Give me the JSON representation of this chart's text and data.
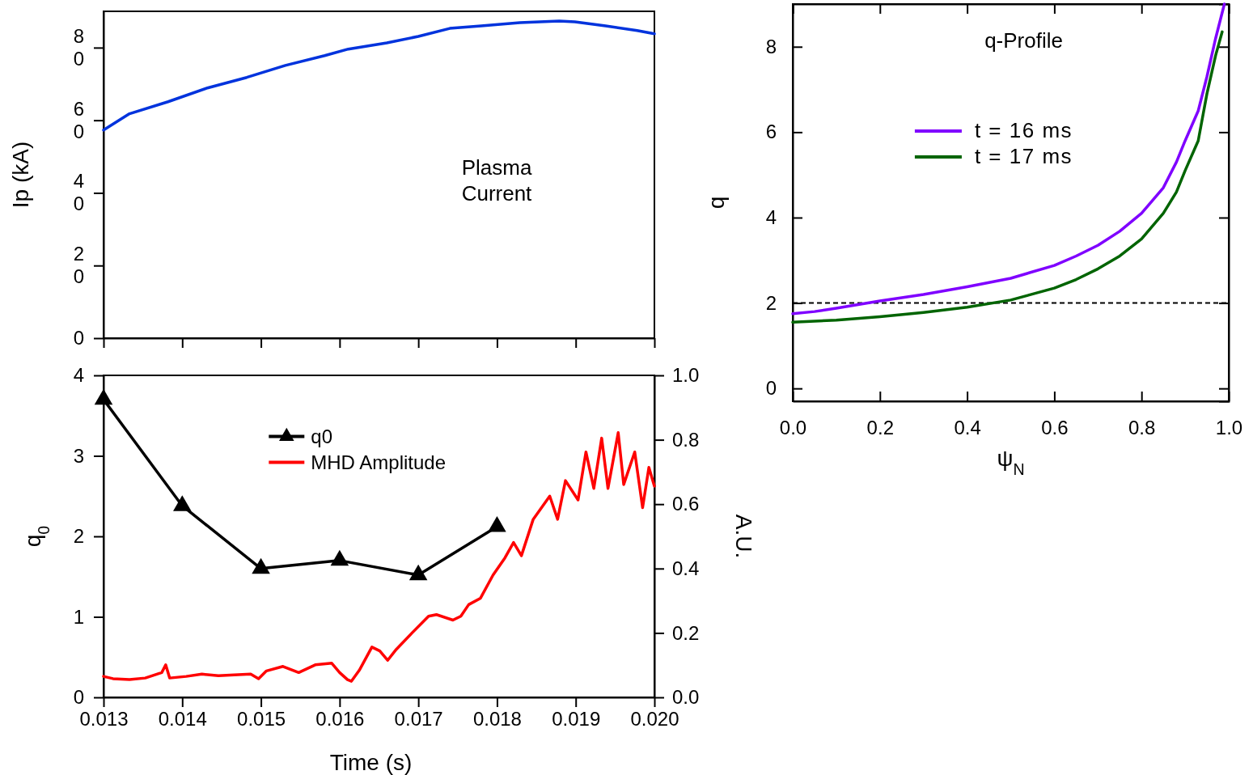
{
  "chart_data": [
    {
      "type": "line",
      "ylabel": "Ip (kA)",
      "annotations": [
        "Plasma\nCurrent"
      ],
      "xlim": [
        0.013,
        0.02
      ],
      "xticks": [
        0.013,
        0.014,
        0.015,
        0.016,
        0.017,
        0.018,
        0.019,
        0.02
      ],
      "ylim": [
        0,
        90
      ],
      "yticks": [
        0,
        20,
        40,
        60,
        80
      ],
      "tick_labels": "y",
      "legend": false,
      "series": [
        {
          "color": "#0033dd",
          "x": [
            0.013,
            0.01333,
            0.01382,
            0.01432,
            0.01482,
            0.01531,
            0.01581,
            0.01611,
            0.0166,
            0.017,
            0.0174,
            0.0178,
            0.01829,
            0.01879,
            0.01899,
            0.01938,
            0.01978,
            0.02
          ],
          "values": [
            57.3,
            61.8,
            65.1,
            68.9,
            71.8,
            75.1,
            77.8,
            79.6,
            81.3,
            83.1,
            85.3,
            86,
            86.9,
            87.3,
            87.1,
            86,
            84.7,
            83.8
          ]
        }
      ]
    },
    {
      "type": "line",
      "xlabel": "Time (s)",
      "ylabel": "q$_{0}$",
      "y2label": "A.U.",
      "xlim": [
        0.013,
        0.02
      ],
      "xticks": [
        0.013,
        0.014,
        0.015,
        0.016,
        0.017,
        0.018,
        0.019,
        {
          "value": 0.02,
          "label": "0.020"
        }
      ],
      "ylim": [
        0,
        4
      ],
      "yticks": [
        0,
        1,
        2,
        3,
        4
      ],
      "y2lim": [
        0,
        1
      ],
      "y2ticks": [
        {
          "value": 0,
          "label": "0.0"
        },
        {
          "value": 0.2,
          "label": "0.2"
        },
        {
          "value": 0.4,
          "label": "0.4"
        },
        {
          "value": 0.6,
          "label": "0.6"
        },
        {
          "value": 0.8,
          "label": "0.8"
        },
        {
          "value": 1,
          "label": "1.0"
        }
      ],
      "legend": "top",
      "series": [
        {
          "name": "q0",
          "color": "#000000",
          "marker": "triangle",
          "x": [
            0.013,
            0.014,
            0.015,
            0.016,
            0.017,
            0.018
          ],
          "values": [
            3.7,
            2.38,
            1.6,
            1.7,
            1.52,
            2.12
          ]
        },
        {
          "name": "MHD Amplitude",
          "color": "#ff0000",
          "axis": "y2",
          "x": [
            0.013,
            0.01312,
            0.01333,
            0.01353,
            0.01374,
            0.01379,
            0.01384,
            0.01405,
            0.01425,
            0.01446,
            0.01466,
            0.01487,
            0.01497,
            0.01507,
            0.01528,
            0.01548,
            0.01569,
            0.0159,
            0.016,
            0.0161,
            0.01615,
            0.01625,
            0.01641,
            0.01651,
            0.01661,
            0.01672,
            0.01692,
            0.01713,
            0.01723,
            0.01744,
            0.01754,
            0.01764,
            0.01779,
            0.01795,
            0.0181,
            0.01821,
            0.01831,
            0.01846,
            0.01867,
            0.01877,
            0.01887,
            0.01903,
            0.01913,
            0.01923,
            0.01933,
            0.01941,
            0.01954,
            0.01961,
            0.01975,
            0.01985,
            0.01993,
            0.02
          ],
          "values": [
            0.065,
            0.058,
            0.055,
            0.06,
            0.077,
            0.101,
            0.06,
            0.065,
            0.072,
            0.067,
            0.07,
            0.072,
            0.058,
            0.082,
            0.096,
            0.077,
            0.101,
            0.106,
            0.077,
            0.055,
            0.05,
            0.084,
            0.156,
            0.144,
            0.115,
            0.149,
            0.2,
            0.252,
            0.257,
            0.24,
            0.252,
            0.288,
            0.308,
            0.38,
            0.433,
            0.481,
            0.44,
            0.553,
            0.625,
            0.553,
            0.673,
            0.613,
            0.762,
            0.649,
            0.805,
            0.649,
            0.822,
            0.661,
            0.762,
            0.589,
            0.714,
            0.656
          ]
        }
      ]
    },
    {
      "type": "line",
      "xlabel": "ψ$_{N}$",
      "ylabel": "q",
      "annotations": [
        "q-Profile"
      ],
      "xlim": [
        0,
        1
      ],
      "xticks": [
        {
          "value": 0,
          "label": "0.0"
        },
        {
          "value": 0.2,
          "label": "0.2"
        },
        {
          "value": 0.4,
          "label": "0.4"
        },
        {
          "value": 0.6,
          "label": "0.6"
        },
        {
          "value": 0.8,
          "label": "0.8"
        },
        {
          "value": 1,
          "label": "1.0"
        }
      ],
      "ylim": [
        -0.3,
        9
      ],
      "yticks": [
        0,
        2,
        4,
        6,
        8
      ],
      "legend": "top",
      "ref_lines": [
        {
          "axis": "y",
          "value": 2,
          "color": "#000000",
          "line_style": "dashed"
        }
      ],
      "series": [
        {
          "name": "t = 16 ms",
          "color": "#7f00ff",
          "x": [
            0,
            0.05,
            0.1,
            0.2,
            0.3,
            0.4,
            0.5,
            0.6,
            0.65,
            0.7,
            0.75,
            0.8,
            0.85,
            0.88,
            0.9,
            0.93,
            0.95,
            0.97,
            0.99
          ],
          "values": [
            1.75,
            1.8,
            1.88,
            2.05,
            2.2,
            2.38,
            2.58,
            2.88,
            3.1,
            3.35,
            3.68,
            4.1,
            4.7,
            5.3,
            5.8,
            6.5,
            7.3,
            8.2,
            9
          ]
        },
        {
          "name": "t = 17 ms",
          "color": "#006400",
          "x": [
            0,
            0.1,
            0.2,
            0.3,
            0.4,
            0.5,
            0.6,
            0.65,
            0.7,
            0.75,
            0.8,
            0.85,
            0.88,
            0.9,
            0.93,
            0.95,
            0.97,
            0.985
          ],
          "values": [
            1.55,
            1.6,
            1.68,
            1.78,
            1.9,
            2.07,
            2.35,
            2.55,
            2.8,
            3.1,
            3.5,
            4.1,
            4.6,
            5.1,
            5.8,
            6.9,
            7.8,
            8.35
          ]
        }
      ]
    }
  ]
}
